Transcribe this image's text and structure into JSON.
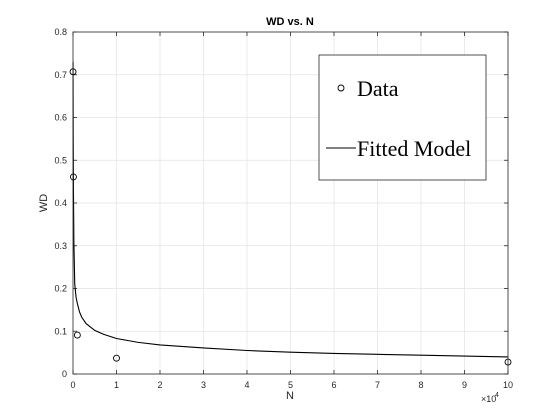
{
  "chart_data": {
    "type": "scatter",
    "title": "WD vs. N",
    "xlabel": "N",
    "ylabel": "WD",
    "x_exponent_label": "×10",
    "x_exponent_power": "4",
    "xlim": [
      0,
      100000
    ],
    "ylim": [
      0,
      0.8
    ],
    "xticks": [
      0,
      10000,
      20000,
      30000,
      40000,
      50000,
      60000,
      70000,
      80000,
      90000,
      100000
    ],
    "xtick_labels": [
      "0",
      "1",
      "2",
      "3",
      "4",
      "5",
      "6",
      "7",
      "8",
      "9",
      "10"
    ],
    "yticks": [
      0,
      0.1,
      0.2,
      0.3,
      0.4,
      0.5,
      0.6,
      0.7,
      0.8
    ],
    "ytick_labels": [
      "0",
      "0.1",
      "0.2",
      "0.3",
      "0.4",
      "0.5",
      "0.6",
      "0.7",
      "0.8"
    ],
    "grid": true,
    "legend_position": "top-right",
    "series": [
      {
        "name": "Data",
        "kind": "scatter",
        "marker": "circle",
        "color": "#000000",
        "x": [
          10,
          100,
          1000,
          10000,
          100000
        ],
        "y": [
          0.707,
          0.461,
          0.091,
          0.037,
          0.028
        ]
      },
      {
        "name": "Fitted Model",
        "kind": "line",
        "color": "#000000",
        "x": [
          10,
          50,
          100,
          200,
          400,
          700,
          1000,
          1500,
          2000,
          3000,
          5000,
          7000,
          10000,
          15000,
          20000,
          30000,
          40000,
          50000,
          60000,
          70000,
          80000,
          90000,
          100000
        ],
        "y": [
          0.73,
          0.55,
          0.43,
          0.31,
          0.21,
          0.18,
          0.165,
          0.145,
          0.133,
          0.118,
          0.102,
          0.093,
          0.083,
          0.074,
          0.068,
          0.061,
          0.055,
          0.051,
          0.048,
          0.046,
          0.044,
          0.042,
          0.04
        ]
      }
    ]
  }
}
